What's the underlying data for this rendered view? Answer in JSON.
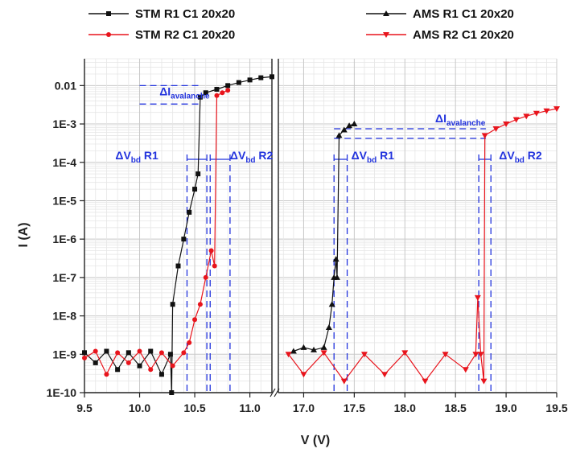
{
  "chart_data": {
    "type": "line",
    "title": "",
    "xlabel": "V (V)",
    "ylabel": "I (A)",
    "y_scale": "log",
    "ylim": [
      1e-10,
      0.05
    ],
    "y_ticks": [
      "1E-10",
      "1E-9",
      "1E-8",
      "1E-7",
      "1E-6",
      "1E-5",
      "1E-4",
      "1E-3",
      "0.01"
    ],
    "grid": true,
    "legend_position": "top",
    "panels": [
      {
        "name": "left",
        "xlim": [
          9.5,
          11.2
        ],
        "x_ticks": [
          "9.5",
          "10.0",
          "10.5",
          "11.0"
        ]
      },
      {
        "name": "right",
        "xlim": [
          16.75,
          19.5
        ],
        "x_ticks": [
          "17.0",
          "17.5",
          "18.0",
          "18.5",
          "19.0",
          "19.5"
        ]
      }
    ],
    "series": [
      {
        "name": "STM R1 C1 20x20",
        "color": "#111111",
        "marker": "square",
        "panel": "left",
        "points": [
          [
            9.5,
            1.1e-09
          ],
          [
            9.6,
            6e-10
          ],
          [
            9.7,
            1.2e-09
          ],
          [
            9.8,
            4e-10
          ],
          [
            9.9,
            1.1e-09
          ],
          [
            10.0,
            5e-10
          ],
          [
            10.1,
            1.2e-09
          ],
          [
            10.2,
            3e-10
          ],
          [
            10.28,
            1e-09
          ],
          [
            10.29,
            1e-10
          ],
          [
            10.3,
            2e-08
          ],
          [
            10.35,
            2e-07
          ],
          [
            10.4,
            1e-06
          ],
          [
            10.45,
            5e-06
          ],
          [
            10.5,
            2e-05
          ],
          [
            10.53,
            5e-05
          ],
          [
            10.55,
            0.005
          ],
          [
            10.6,
            0.0065
          ],
          [
            10.7,
            0.008
          ],
          [
            10.8,
            0.01
          ],
          [
            10.9,
            0.012
          ],
          [
            11.0,
            0.014
          ],
          [
            11.1,
            0.016
          ],
          [
            11.2,
            0.017
          ]
        ]
      },
      {
        "name": "STM R2 C1 20x20",
        "color": "#e8141c",
        "marker": "circle",
        "panel": "left",
        "points": [
          [
            9.5,
            8e-10
          ],
          [
            9.6,
            1.2e-09
          ],
          [
            9.7,
            3e-10
          ],
          [
            9.8,
            1.1e-09
          ],
          [
            9.9,
            6e-10
          ],
          [
            10.0,
            1.2e-09
          ],
          [
            10.1,
            4e-10
          ],
          [
            10.2,
            1.1e-09
          ],
          [
            10.3,
            5e-10
          ],
          [
            10.4,
            1.1e-09
          ],
          [
            10.45,
            2e-09
          ],
          [
            10.5,
            8e-09
          ],
          [
            10.55,
            2e-08
          ],
          [
            10.6,
            1e-07
          ],
          [
            10.65,
            5e-07
          ],
          [
            10.68,
            2e-07
          ],
          [
            10.7,
            0.0055
          ],
          [
            10.75,
            0.0065
          ],
          [
            10.8,
            0.0075
          ]
        ]
      },
      {
        "name": "AMS R1 C1 20x20",
        "color": "#111111",
        "marker": "triangle-up",
        "panel": "right",
        "points": [
          [
            16.9,
            1.2e-09
          ],
          [
            17.0,
            1.5e-09
          ],
          [
            17.1,
            1.3e-09
          ],
          [
            17.2,
            1.5e-09
          ],
          [
            17.25,
            5e-09
          ],
          [
            17.28,
            2e-08
          ],
          [
            17.3,
            1e-07
          ],
          [
            17.32,
            3e-07
          ],
          [
            17.33,
            1e-07
          ],
          [
            17.35,
            0.0005
          ],
          [
            17.4,
            0.0007
          ],
          [
            17.45,
            0.0009
          ],
          [
            17.5,
            0.001
          ]
        ]
      },
      {
        "name": "AMS R2 C1 20x20",
        "color": "#e8141c",
        "marker": "triangle-down",
        "panel": "right",
        "points": [
          [
            16.85,
            1e-09
          ],
          [
            17.0,
            3e-10
          ],
          [
            17.2,
            1.1e-09
          ],
          [
            17.4,
            2e-10
          ],
          [
            17.6,
            1e-09
          ],
          [
            17.8,
            3e-10
          ],
          [
            18.0,
            1.1e-09
          ],
          [
            18.2,
            2e-10
          ],
          [
            18.4,
            1e-09
          ],
          [
            18.6,
            4e-10
          ],
          [
            18.7,
            1e-09
          ],
          [
            18.72,
            3e-08
          ],
          [
            18.75,
            1e-09
          ],
          [
            18.78,
            2e-10
          ],
          [
            18.79,
            0.0005
          ],
          [
            18.9,
            0.00075
          ],
          [
            19.0,
            0.001
          ],
          [
            19.1,
            0.0013
          ],
          [
            19.2,
            0.0016
          ],
          [
            19.3,
            0.0019
          ],
          [
            19.4,
            0.0022
          ],
          [
            19.5,
            0.0025
          ]
        ]
      }
    ],
    "annotations": [
      {
        "text": "ΔI",
        "sub": "avalanche",
        "panel": "left",
        "x": 10.18,
        "y": 0.0055
      },
      {
        "text": "ΔV",
        "sub": "bd",
        "suffix": " R1",
        "panel": "left",
        "x": 9.78,
        "y": 0.00012
      },
      {
        "text": "ΔV",
        "sub": "bd",
        "suffix": " R2",
        "panel": "left",
        "x": 10.82,
        "y": 0.00012
      },
      {
        "text": "ΔV",
        "sub": "bd",
        "suffix": " R1",
        "panel": "right",
        "x": 17.47,
        "y": 0.00012
      },
      {
        "text": "ΔI",
        "sub": "avalanche",
        "panel": "right",
        "x": 18.3,
        "y": 0.0011
      },
      {
        "text": "ΔV",
        "sub": "bd",
        "suffix": " R2",
        "panel": "right",
        "x": 18.93,
        "y": 0.00012
      }
    ],
    "guide_lines": {
      "color": "#2233dd",
      "left": {
        "h": [
          [
            10.0,
            10.55,
            0.01
          ],
          [
            10.0,
            10.55,
            0.0033
          ]
        ],
        "v": [
          10.43,
          10.61,
          10.64,
          10.82
        ]
      },
      "right": {
        "h": [
          [
            17.3,
            18.8,
            0.00075
          ],
          [
            17.3,
            18.8,
            0.00042
          ]
        ],
        "v": [
          17.3,
          17.43,
          18.73,
          18.85
        ]
      }
    }
  }
}
